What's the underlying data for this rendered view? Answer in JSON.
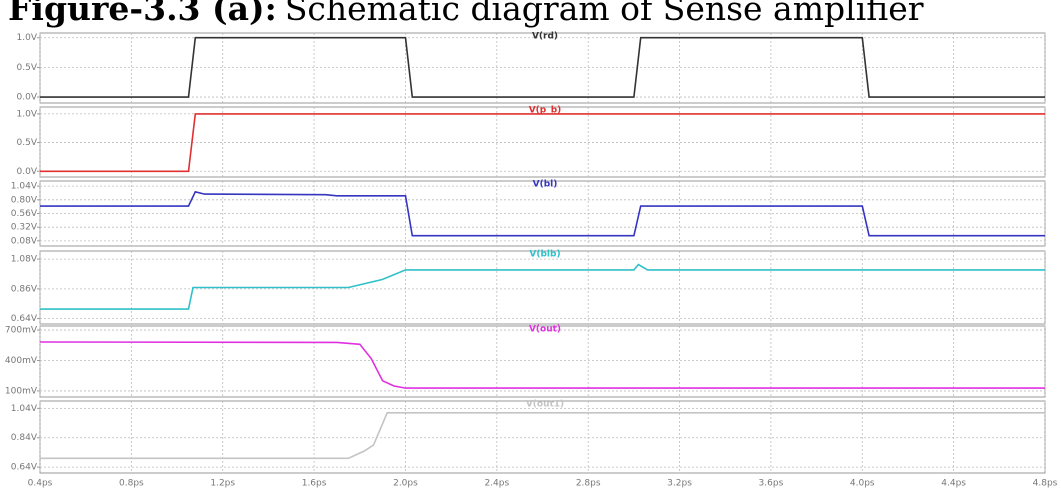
{
  "caption": {
    "label": "Figure-3.3 (a):",
    "text": "Schematic diagram of Sense amplifier"
  },
  "chart_data": [
    {
      "type": "line",
      "xlim": [
        0.4,
        4.8
      ],
      "ylim": [
        -0.1,
        1.08
      ],
      "grid": true,
      "yticks": [
        {
          "value": 0,
          "label": "0.0V"
        },
        {
          "value": 0.5,
          "label": "0.5V"
        },
        {
          "value": 1,
          "label": "1.0V"
        }
      ],
      "x": [
        0.4,
        1.05,
        1.08,
        2.0,
        2.03,
        3.0,
        3.03,
        4.0,
        4.03,
        4.8
      ],
      "series": [
        {
          "name": "V(rd)",
          "color": "#333333",
          "values": [
            0,
            0,
            1,
            1,
            0,
            0,
            1,
            1,
            0,
            0
          ]
        }
      ]
    },
    {
      "type": "line",
      "xlim": [
        0.4,
        4.8
      ],
      "ylim": [
        -0.1,
        1.12
      ],
      "grid": true,
      "yticks": [
        {
          "value": 0,
          "label": "0.0V"
        },
        {
          "value": 0.5,
          "label": "0.5V"
        },
        {
          "value": 1,
          "label": "1.0V"
        }
      ],
      "x": [
        0.4,
        1.05,
        1.08,
        4.8
      ],
      "series": [
        {
          "name": "V(p_b)",
          "color": "#e03030",
          "values": [
            0,
            0,
            1,
            1
          ]
        }
      ]
    },
    {
      "type": "line",
      "xlim": [
        0.4,
        4.8
      ],
      "ylim": [
        -0.01,
        1.13
      ],
      "grid": true,
      "yticks": [
        {
          "value": 0.08,
          "label": "0.08V"
        },
        {
          "value": 0.32,
          "label": "0.32V"
        },
        {
          "value": 0.56,
          "label": "0.56V"
        },
        {
          "value": 0.8,
          "label": "0.80V"
        },
        {
          "value": 1.04,
          "label": "1.04V"
        }
      ],
      "x": [
        0.4,
        1.05,
        1.08,
        1.12,
        1.65,
        1.7,
        2.0,
        2.03,
        3.0,
        3.03,
        4.0,
        4.03,
        4.8
      ],
      "series": [
        {
          "name": "V(bl)",
          "color": "#3535c0",
          "values": [
            0.69,
            0.69,
            0.94,
            0.9,
            0.89,
            0.87,
            0.87,
            0.17,
            0.17,
            0.69,
            0.69,
            0.17,
            0.17
          ]
        }
      ]
    },
    {
      "type": "line",
      "xlim": [
        0.4,
        4.8
      ],
      "ylim": [
        0.6,
        1.14
      ],
      "grid": true,
      "yticks": [
        {
          "value": 0.64,
          "label": "0.64V"
        },
        {
          "value": 0.86,
          "label": "0.86V"
        },
        {
          "value": 1.08,
          "label": "1.08V"
        }
      ],
      "x": [
        0.4,
        1.05,
        1.07,
        1.75,
        1.9,
        2.0,
        3.0,
        3.02,
        3.06,
        4.8
      ],
      "series": [
        {
          "name": "V(blb)",
          "color": "#30c0c8",
          "values": [
            0.71,
            0.71,
            0.87,
            0.87,
            0.93,
            1.0,
            1.0,
            1.04,
            1.0,
            1.0
          ]
        }
      ]
    },
    {
      "type": "line",
      "xlim": [
        0.4,
        4.8
      ],
      "ylim": [
        40,
        740
      ],
      "grid": true,
      "yticks": [
        {
          "value": 100,
          "label": "100mV"
        },
        {
          "value": 400,
          "label": "400mV"
        },
        {
          "value": 700,
          "label": "700mV"
        }
      ],
      "x": [
        0.4,
        1.7,
        1.8,
        1.85,
        1.9,
        1.95,
        2.0,
        4.8
      ],
      "series": [
        {
          "name": "V(out)",
          "color": "#e030e0",
          "values": [
            582,
            578,
            560,
            420,
            200,
            148,
            128,
            128
          ]
        }
      ]
    },
    {
      "type": "line",
      "xlim": [
        0.4,
        4.8
      ],
      "ylim": [
        0.6,
        1.09
      ],
      "grid": true,
      "yticks": [
        {
          "value": 0.64,
          "label": "0.64V"
        },
        {
          "value": 0.84,
          "label": "0.84V"
        },
        {
          "value": 1.04,
          "label": "1.04V"
        }
      ],
      "xticks": [
        {
          "value": 0.4,
          "label": "0.4ps"
        },
        {
          "value": 0.8,
          "label": "0.8ps"
        },
        {
          "value": 1.2,
          "label": "1.2ps"
        },
        {
          "value": 1.6,
          "label": "1.6ps"
        },
        {
          "value": 2.0,
          "label": "2.0ps"
        },
        {
          "value": 2.4,
          "label": "2.4ps"
        },
        {
          "value": 2.8,
          "label": "2.8ps"
        },
        {
          "value": 3.2,
          "label": "3.2ps"
        },
        {
          "value": 3.6,
          "label": "3.6ps"
        },
        {
          "value": 4.0,
          "label": "4.0ps"
        },
        {
          "value": 4.4,
          "label": "4.4ps"
        },
        {
          "value": 4.8,
          "label": "4.8ps"
        }
      ],
      "x": [
        0.4,
        1.75,
        1.82,
        1.86,
        1.92,
        4.8
      ],
      "series": [
        {
          "name": "V(out1)",
          "color": "#c4c4c4",
          "values": [
            0.7,
            0.7,
            0.75,
            0.79,
            1.01,
            1.01
          ]
        }
      ]
    }
  ]
}
